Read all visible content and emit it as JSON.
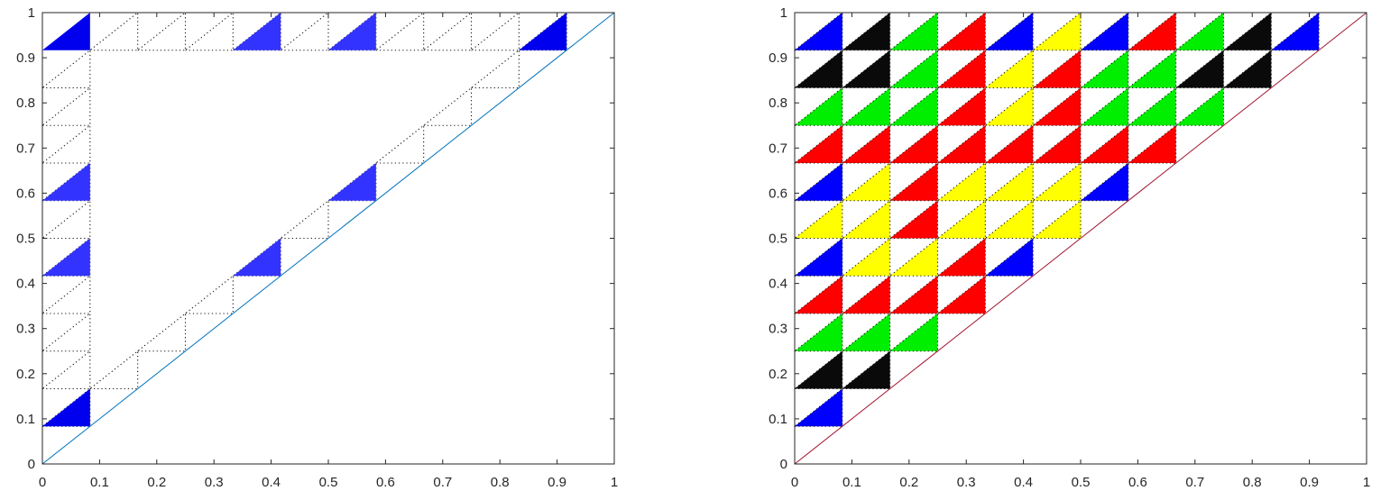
{
  "chart_data": [
    {
      "type": "triangle-grid",
      "grid_step": 0.0833333,
      "xlim": [
        0,
        1
      ],
      "ylim": [
        0,
        1
      ],
      "xticks": [
        "0",
        "0.1",
        "0.2",
        "0.3",
        "0.4",
        "0.5",
        "0.6",
        "0.7",
        "0.8",
        "0.9",
        "1"
      ],
      "yticks": [
        "0",
        "0.1",
        "0.2",
        "0.3",
        "0.4",
        "0.5",
        "0.6",
        "0.7",
        "0.8",
        "0.9",
        "1"
      ],
      "diagonal_color": "#0072BD",
      "dotted_cells": [
        [
          0,
          1
        ],
        [
          0,
          2
        ],
        [
          0,
          3
        ],
        [
          0,
          4
        ],
        [
          0,
          5
        ],
        [
          0,
          6
        ],
        [
          0,
          7
        ],
        [
          0,
          8
        ],
        [
          0,
          9
        ],
        [
          0,
          10
        ],
        [
          1,
          11
        ],
        [
          2,
          11
        ],
        [
          3,
          11
        ],
        [
          4,
          11
        ],
        [
          5,
          11
        ],
        [
          6,
          11
        ],
        [
          7,
          11
        ],
        [
          8,
          11
        ],
        [
          9,
          11
        ],
        [
          10,
          11
        ],
        [
          1,
          2
        ],
        [
          2,
          3
        ],
        [
          3,
          4
        ],
        [
          4,
          5
        ],
        [
          5,
          6
        ],
        [
          6,
          7
        ],
        [
          7,
          8
        ],
        [
          8,
          9
        ],
        [
          9,
          10
        ]
      ],
      "filled_triangles": [
        {
          "x": 0.0,
          "y": 0.0833333,
          "color": "#0000ee"
        },
        {
          "x": 0.0,
          "y": 0.4166667,
          "color": "#3333ff"
        },
        {
          "x": 0.0,
          "y": 0.5833333,
          "color": "#3333ff"
        },
        {
          "x": 0.0,
          "y": 0.9166667,
          "color": "#0000ee"
        },
        {
          "x": 0.3333333,
          "y": 0.4166667,
          "color": "#3333ff"
        },
        {
          "x": 0.3333333,
          "y": 0.9166667,
          "color": "#3333ff"
        },
        {
          "x": 0.5,
          "y": 0.5833333,
          "color": "#3333ff"
        },
        {
          "x": 0.5,
          "y": 0.9166667,
          "color": "#3333ff"
        },
        {
          "x": 0.8333333,
          "y": 0.9166667,
          "color": "#0000ee"
        }
      ]
    },
    {
      "type": "triangle-grid",
      "grid_step": 0.0833333,
      "xlim": [
        0,
        1
      ],
      "ylim": [
        0,
        1
      ],
      "xticks": [
        "0",
        "0.1",
        "0.2",
        "0.3",
        "0.4",
        "0.5",
        "0.6",
        "0.7",
        "0.8",
        "0.9",
        "1"
      ],
      "yticks": [
        "0",
        "0.1",
        "0.2",
        "0.3",
        "0.4",
        "0.5",
        "0.6",
        "0.7",
        "0.8",
        "0.9",
        "1"
      ],
      "diagonal_color": "#A2142F",
      "colors": {
        "blue": "#0000ff",
        "black": "#0a0a0a",
        "green": "#00ee00",
        "red": "#ff0000",
        "yellow": "#ffff00"
      },
      "cell_colors": [
        [
          0,
          1,
          "blue"
        ],
        [
          0,
          2,
          "black"
        ],
        [
          1,
          2,
          "black"
        ],
        [
          0,
          3,
          "green"
        ],
        [
          1,
          3,
          "green"
        ],
        [
          2,
          3,
          "green"
        ],
        [
          0,
          4,
          "red"
        ],
        [
          1,
          4,
          "red"
        ],
        [
          2,
          4,
          "red"
        ],
        [
          3,
          4,
          "red"
        ],
        [
          0,
          5,
          "blue"
        ],
        [
          1,
          5,
          "yellow"
        ],
        [
          2,
          5,
          "yellow"
        ],
        [
          3,
          5,
          "red"
        ],
        [
          4,
          5,
          "blue"
        ],
        [
          0,
          6,
          "yellow"
        ],
        [
          1,
          6,
          "yellow"
        ],
        [
          2,
          6,
          "red"
        ],
        [
          3,
          6,
          "yellow"
        ],
        [
          4,
          6,
          "yellow"
        ],
        [
          5,
          6,
          "yellow"
        ],
        [
          0,
          7,
          "blue"
        ],
        [
          1,
          7,
          "yellow"
        ],
        [
          2,
          7,
          "red"
        ],
        [
          3,
          7,
          "yellow"
        ],
        [
          4,
          7,
          "yellow"
        ],
        [
          5,
          7,
          "yellow"
        ],
        [
          6,
          7,
          "blue"
        ],
        [
          0,
          8,
          "red"
        ],
        [
          1,
          8,
          "red"
        ],
        [
          2,
          8,
          "red"
        ],
        [
          3,
          8,
          "red"
        ],
        [
          4,
          8,
          "red"
        ],
        [
          5,
          8,
          "red"
        ],
        [
          6,
          8,
          "red"
        ],
        [
          7,
          8,
          "red"
        ],
        [
          0,
          9,
          "green"
        ],
        [
          1,
          9,
          "green"
        ],
        [
          2,
          9,
          "green"
        ],
        [
          3,
          9,
          "red"
        ],
        [
          4,
          9,
          "yellow"
        ],
        [
          5,
          9,
          "red"
        ],
        [
          6,
          9,
          "green"
        ],
        [
          7,
          9,
          "green"
        ],
        [
          8,
          9,
          "green"
        ],
        [
          0,
          10,
          "black"
        ],
        [
          1,
          10,
          "black"
        ],
        [
          2,
          10,
          "green"
        ],
        [
          3,
          10,
          "red"
        ],
        [
          4,
          10,
          "yellow"
        ],
        [
          5,
          10,
          "red"
        ],
        [
          6,
          10,
          "green"
        ],
        [
          7,
          10,
          "green"
        ],
        [
          8,
          10,
          "black"
        ],
        [
          9,
          10,
          "black"
        ],
        [
          0,
          11,
          "blue"
        ],
        [
          1,
          11,
          "black"
        ],
        [
          2,
          11,
          "green"
        ],
        [
          3,
          11,
          "red"
        ],
        [
          4,
          11,
          "blue"
        ],
        [
          5,
          11,
          "yellow"
        ],
        [
          6,
          11,
          "blue"
        ],
        [
          7,
          11,
          "red"
        ],
        [
          8,
          11,
          "green"
        ],
        [
          9,
          11,
          "black"
        ],
        [
          10,
          11,
          "blue"
        ]
      ]
    }
  ]
}
